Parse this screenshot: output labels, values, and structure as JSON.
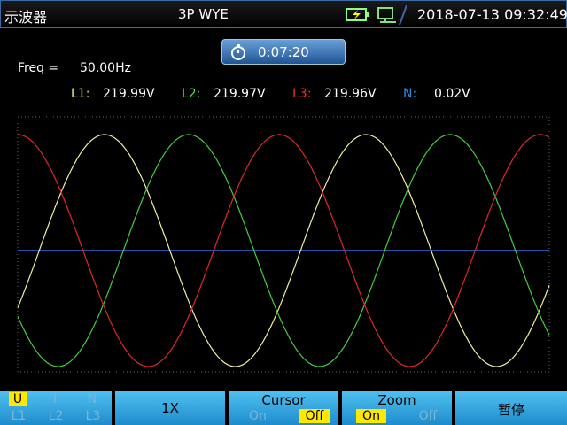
{
  "header": {
    "title": "示波器",
    "mode": "3P WYE",
    "datetime": "2018-07-13 09:32:49"
  },
  "timer": "0:07:20",
  "freq": {
    "label": "Freq =",
    "value": "50.00Hz"
  },
  "phases": [
    {
      "label": "L1:",
      "value": "219.99V"
    },
    {
      "label": "L2:",
      "value": "219.97V"
    },
    {
      "label": "L3:",
      "value": "219.96V"
    },
    {
      "label": "N:",
      "value": "0.02V"
    }
  ],
  "softkeys": [
    {
      "top": [
        "U",
        "I",
        "N"
      ],
      "bottom": [
        "L1",
        "L2",
        "L3"
      ]
    },
    {
      "label": "1X"
    },
    {
      "title": "Cursor",
      "options": [
        "On",
        "Off"
      ]
    },
    {
      "title": "Zoom",
      "options": [
        "On",
        "Off"
      ]
    },
    {
      "label": "暂停"
    }
  ]
}
